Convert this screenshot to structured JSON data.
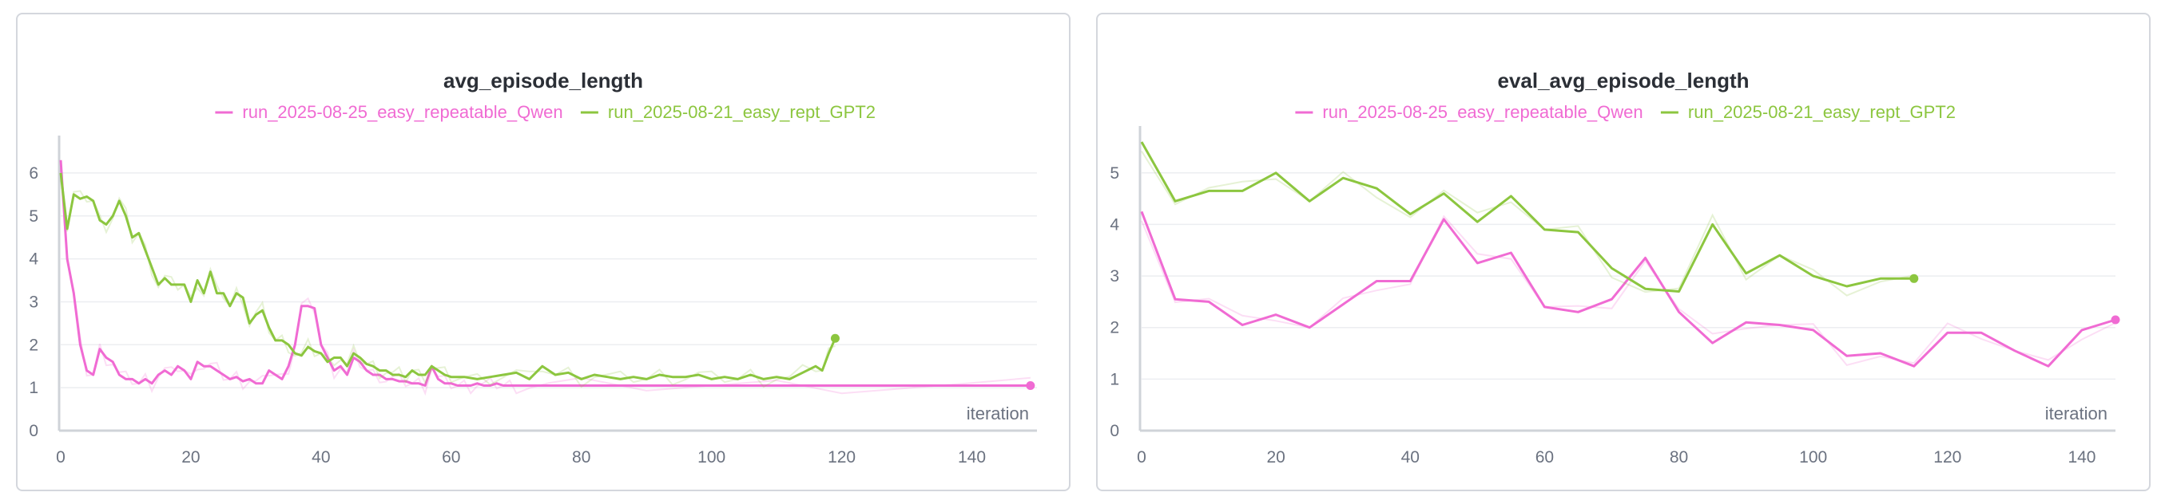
{
  "colors": {
    "qwen": "#f06bd3",
    "gpt2": "#8cc63f"
  },
  "chart_data": [
    {
      "type": "line",
      "title": "avg_episode_length",
      "xlabel": "iteration",
      "ylabel": "",
      "xlim": [
        0,
        150
      ],
      "ylim": [
        0,
        6.5
      ],
      "xticks": [
        0,
        20,
        40,
        60,
        80,
        100,
        120,
        140
      ],
      "yticks": [
        0,
        1,
        2,
        3,
        4,
        5,
        6
      ],
      "legend": "top",
      "grid": true,
      "series": [
        {
          "name": "run_2025-08-25_easy_repeatable_Qwen",
          "color": "#f06bd3",
          "x": [
            0,
            1,
            2,
            3,
            4,
            5,
            6,
            7,
            8,
            9,
            10,
            11,
            12,
            13,
            14,
            15,
            16,
            17,
            18,
            19,
            20,
            21,
            22,
            23,
            24,
            25,
            26,
            27,
            28,
            29,
            30,
            31,
            32,
            33,
            34,
            35,
            36,
            37,
            38,
            39,
            40,
            41,
            42,
            43,
            44,
            45,
            46,
            47,
            48,
            49,
            50,
            51,
            52,
            53,
            54,
            55,
            56,
            57,
            58,
            59,
            60,
            61,
            62,
            63,
            64,
            65,
            66,
            67,
            68,
            69,
            70,
            72,
            75,
            80,
            90,
            100,
            110,
            120,
            130,
            140,
            149
          ],
          "y": [
            6.3,
            4.0,
            3.2,
            2.0,
            1.4,
            1.3,
            1.9,
            1.7,
            1.6,
            1.3,
            1.2,
            1.2,
            1.1,
            1.2,
            1.1,
            1.3,
            1.4,
            1.3,
            1.5,
            1.4,
            1.2,
            1.6,
            1.5,
            1.5,
            1.4,
            1.3,
            1.2,
            1.25,
            1.15,
            1.2,
            1.1,
            1.1,
            1.4,
            1.3,
            1.2,
            1.5,
            2.0,
            2.9,
            2.9,
            2.85,
            2.0,
            1.7,
            1.4,
            1.5,
            1.3,
            1.7,
            1.6,
            1.4,
            1.3,
            1.3,
            1.2,
            1.2,
            1.15,
            1.15,
            1.1,
            1.1,
            1.05,
            1.5,
            1.2,
            1.1,
            1.1,
            1.05,
            1.05,
            1.05,
            1.1,
            1.05,
            1.05,
            1.1,
            1.05,
            1.05,
            1.05,
            1.05,
            1.05,
            1.05,
            1.05,
            1.05,
            1.05,
            1.05,
            1.05,
            1.05,
            1.05
          ]
        },
        {
          "name": "run_2025-08-21_easy_rept_GPT2",
          "color": "#8cc63f",
          "x": [
            0,
            1,
            2,
            3,
            4,
            5,
            6,
            7,
            8,
            9,
            10,
            11,
            12,
            13,
            14,
            15,
            16,
            17,
            18,
            19,
            20,
            21,
            22,
            23,
            24,
            25,
            26,
            27,
            28,
            29,
            30,
            31,
            32,
            33,
            34,
            35,
            36,
            37,
            38,
            39,
            40,
            41,
            42,
            43,
            44,
            45,
            46,
            47,
            48,
            49,
            50,
            51,
            52,
            53,
            54,
            55,
            56,
            57,
            58,
            59,
            60,
            62,
            64,
            66,
            68,
            70,
            72,
            74,
            76,
            78,
            80,
            82,
            84,
            86,
            88,
            90,
            92,
            94,
            96,
            98,
            100,
            102,
            104,
            106,
            108,
            110,
            112,
            114,
            116,
            117,
            118,
            119
          ],
          "y": [
            6.0,
            4.7,
            5.5,
            5.4,
            5.45,
            5.35,
            4.9,
            4.8,
            5.0,
            5.35,
            5.0,
            4.5,
            4.6,
            4.2,
            3.8,
            3.4,
            3.55,
            3.4,
            3.4,
            3.4,
            3.0,
            3.5,
            3.2,
            3.7,
            3.2,
            3.2,
            2.9,
            3.2,
            3.1,
            2.5,
            2.7,
            2.8,
            2.4,
            2.1,
            2.1,
            2.0,
            1.8,
            1.75,
            1.95,
            1.85,
            1.8,
            1.6,
            1.7,
            1.7,
            1.5,
            1.8,
            1.7,
            1.55,
            1.5,
            1.4,
            1.4,
            1.3,
            1.3,
            1.25,
            1.4,
            1.3,
            1.3,
            1.5,
            1.4,
            1.3,
            1.25,
            1.25,
            1.2,
            1.25,
            1.3,
            1.35,
            1.2,
            1.5,
            1.3,
            1.35,
            1.2,
            1.3,
            1.25,
            1.2,
            1.25,
            1.2,
            1.3,
            1.25,
            1.25,
            1.3,
            1.2,
            1.25,
            1.2,
            1.3,
            1.2,
            1.25,
            1.2,
            1.35,
            1.5,
            1.4,
            1.8,
            2.15
          ]
        }
      ]
    },
    {
      "type": "line",
      "title": "eval_avg_episode_length",
      "xlabel": "iteration",
      "ylabel": "",
      "xlim": [
        0,
        145
      ],
      "ylim": [
        0,
        5.6
      ],
      "xticks": [
        0,
        20,
        40,
        60,
        80,
        100,
        120,
        140
      ],
      "yticks": [
        0,
        1,
        2,
        3,
        4,
        5
      ],
      "legend": "top",
      "grid": true,
      "series": [
        {
          "name": "run_2025-08-25_easy_repeatable_Qwen",
          "color": "#f06bd3",
          "x": [
            0,
            5,
            10,
            15,
            20,
            25,
            30,
            35,
            40,
            45,
            50,
            55,
            60,
            65,
            70,
            75,
            80,
            85,
            90,
            95,
            100,
            105,
            110,
            115,
            120,
            125,
            130,
            135,
            140,
            145
          ],
          "y": [
            4.25,
            2.55,
            2.5,
            2.05,
            2.25,
            2.0,
            2.45,
            2.9,
            2.9,
            4.1,
            3.25,
            3.45,
            2.4,
            2.3,
            2.55,
            3.35,
            2.3,
            1.7,
            2.1,
            2.05,
            1.95,
            1.45,
            1.5,
            1.25,
            1.9,
            1.9,
            1.55,
            1.25,
            1.95,
            2.15
          ]
        },
        {
          "name": "run_2025-08-21_easy_rept_GPT2",
          "color": "#8cc63f",
          "x": [
            0,
            5,
            10,
            15,
            20,
            25,
            30,
            35,
            40,
            45,
            50,
            55,
            60,
            65,
            70,
            75,
            80,
            85,
            90,
            95,
            100,
            105,
            110,
            115
          ],
          "y": [
            5.6,
            4.45,
            4.65,
            4.65,
            5.0,
            4.45,
            4.9,
            4.7,
            4.2,
            4.6,
            4.05,
            4.55,
            3.9,
            3.85,
            3.15,
            2.75,
            2.7,
            4.0,
            3.05,
            3.4,
            3.0,
            2.8,
            2.95,
            2.95
          ]
        }
      ]
    }
  ]
}
